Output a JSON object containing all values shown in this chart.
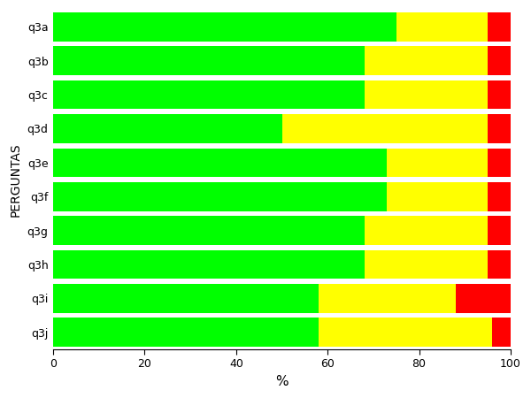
{
  "categories": [
    "q3a",
    "q3b",
    "q3c",
    "q3d",
    "q3e",
    "q3f",
    "q3g",
    "q3h",
    "q3i",
    "q3j"
  ],
  "sim": [
    75.0,
    68.0,
    68.0,
    50.0,
    73.0,
    73.0,
    68.0,
    68.0,
    58.0,
    58.0
  ],
  "parcialmente": [
    20.0,
    27.0,
    27.0,
    45.0,
    22.0,
    22.0,
    27.0,
    27.0,
    30.0,
    38.0
  ],
  "nao": [
    5.0,
    5.0,
    5.0,
    5.0,
    5.0,
    5.0,
    5.0,
    5.0,
    12.0,
    4.0
  ],
  "color_sim": "#00ff00",
  "color_parcialmente": "#ffff00",
  "color_nao": "#ff0000",
  "xlabel": "%",
  "ylabel": "PERGUNTAS",
  "xlim": [
    0,
    100
  ],
  "xticks": [
    0,
    20,
    40,
    60,
    80,
    100
  ],
  "bar_height": 0.85,
  "figsize": [
    6.0,
    4.5
  ],
  "dpi": 100,
  "bgcolor": "#ffffff"
}
